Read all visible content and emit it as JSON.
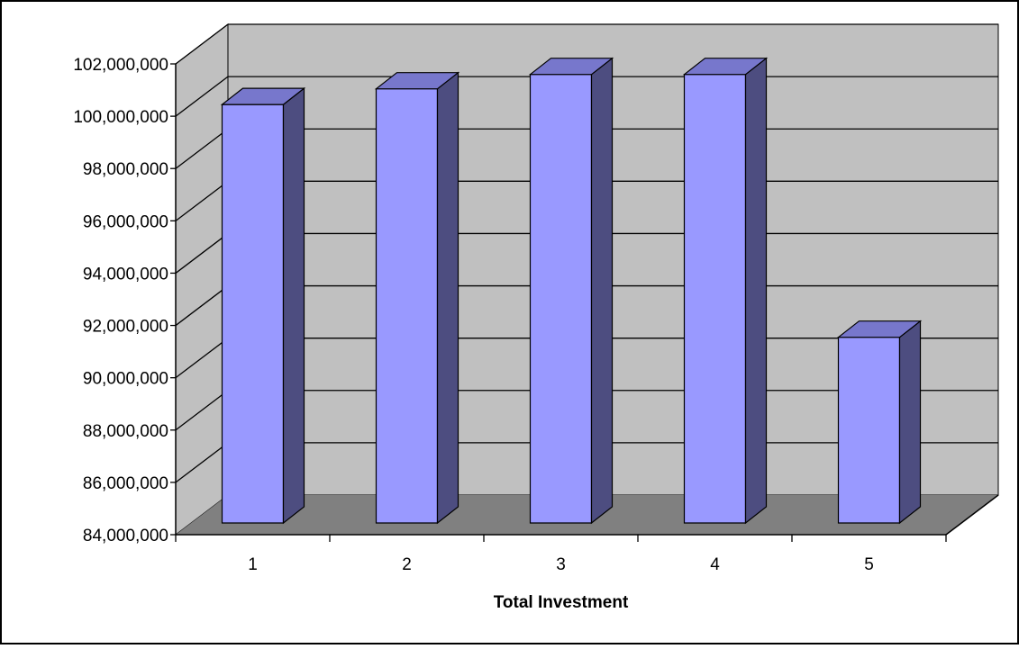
{
  "chart_data": {
    "type": "bar",
    "three_d": true,
    "title": "",
    "xlabel": "Total Investment",
    "ylabel": "",
    "categories": [
      "1",
      "2",
      "3",
      "4",
      "5"
    ],
    "series": [
      {
        "values": [
          100000000,
          100600000,
          101150000,
          101150000,
          91100000
        ]
      }
    ],
    "ylim": [
      84000000,
      102000000
    ],
    "ytick_labels": [
      "84,000,000",
      "86,000,000",
      "88,000,000",
      "90,000,000",
      "92,000,000",
      "94,000,000",
      "96,000,000",
      "98,000,000",
      "100,000,000",
      "102,000,000"
    ],
    "grid": true,
    "legend": "none",
    "colors": {
      "bar_front": "#9999ff",
      "bar_side": "#4d4d80",
      "bar_top": "#7777cc",
      "back_wall": "#c0c0c0",
      "side_wall": "#c0c0c0",
      "floor": "#808080",
      "gridline": "#000000",
      "frame": "#000000"
    }
  }
}
